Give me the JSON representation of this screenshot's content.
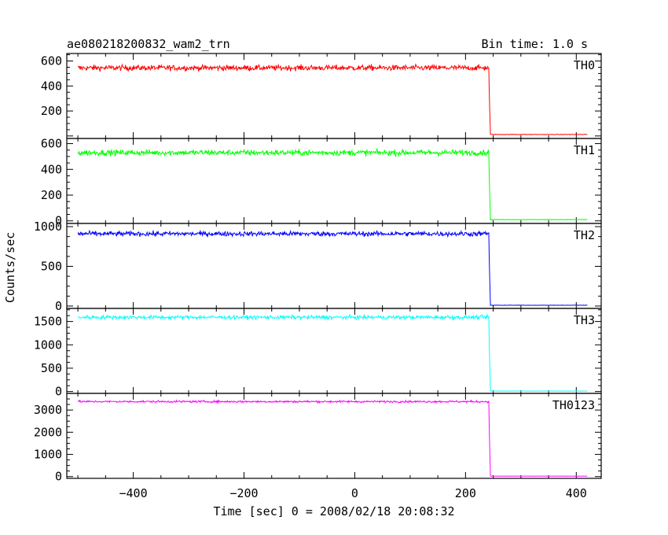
{
  "chart_data": {
    "type": "line",
    "title": "ae080218200832_wam2_trn",
    "bin_time_label": "Bin time: 1.0 s",
    "xlabel": "Time [sec] 0 = 2008/02/18 20:08:32",
    "ylabel": "Counts/sec",
    "xlim": [
      -520,
      445
    ],
    "x_ticks": [
      -400,
      -200,
      0,
      200,
      400
    ],
    "x_tick_labels": [
      "−400",
      "−200",
      "0",
      "200",
      "400"
    ],
    "drop_time": 243,
    "x_start": -500,
    "x_end": 420,
    "grid": false,
    "legend": "none",
    "series": [
      {
        "name": "TH0",
        "color": "#ff0000",
        "ylim": [
          -20,
          660
        ],
        "y_ticks": [
          200,
          400,
          600
        ],
        "y_tick_labels": [
          "200",
          "400",
          "600"
        ],
        "level_before": 545,
        "noise": 22,
        "level_after": 12
      },
      {
        "name": "TH1",
        "color": "#00ff00",
        "ylim": [
          -20,
          640
        ],
        "y_ticks": [
          0,
          200,
          400,
          600
        ],
        "y_tick_labels": [
          "0",
          "200",
          "400",
          "600"
        ],
        "level_before": 530,
        "noise": 22,
        "level_after": 10
      },
      {
        "name": "TH2",
        "color": "#0000ff",
        "ylim": [
          -30,
          1040
        ],
        "y_ticks": [
          0,
          500,
          1000
        ],
        "y_tick_labels": [
          "0",
          "500",
          "1000"
        ],
        "level_before": 910,
        "noise": 30,
        "level_after": 10
      },
      {
        "name": "TH3",
        "color": "#00ffff",
        "ylim": [
          -40,
          1780
        ],
        "y_ticks": [
          0,
          500,
          1000,
          1500
        ],
        "y_tick_labels": [
          "0",
          "500",
          "1000",
          "1500"
        ],
        "level_before": 1590,
        "noise": 40,
        "level_after": 10
      },
      {
        "name": "TH0123",
        "color": "#ff00ff",
        "ylim": [
          -80,
          3750
        ],
        "y_ticks": [
          0,
          1000,
          2000,
          3000
        ],
        "y_tick_labels": [
          "0",
          "1000",
          "2000",
          "3000"
        ],
        "level_before": 3380,
        "noise": 45,
        "level_after": 20
      }
    ]
  }
}
